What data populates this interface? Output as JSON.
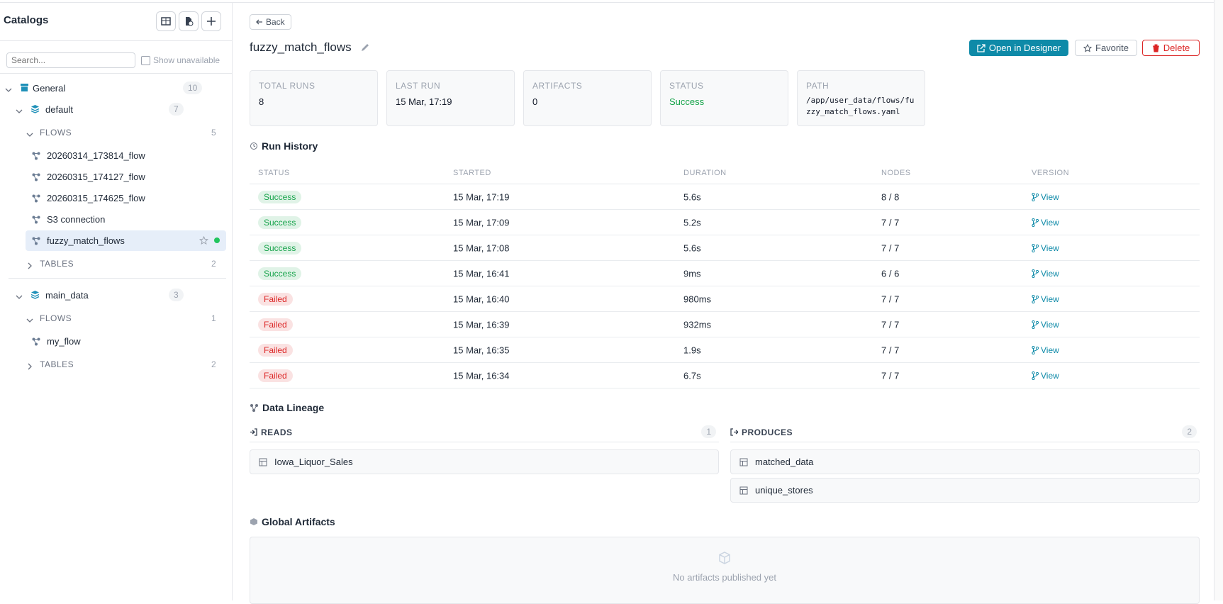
{
  "sidebar": {
    "title": "Catalogs",
    "search_placeholder": "Search...",
    "show_unavailable": "Show unavailable",
    "catalogs": [
      {
        "name": "General",
        "count": 10,
        "schemas": [
          {
            "name": "default",
            "count": 7,
            "sections": [
              {
                "label": "FLOWS",
                "count": 5,
                "items": [
                  "20260314_173814_flow",
                  "20260315_174127_flow",
                  "20260315_174625_flow",
                  "S3 connection",
                  "fuzzy_match_flows"
                ]
              },
              {
                "label": "TABLES",
                "count": 2,
                "items": []
              }
            ]
          },
          {
            "name": "main_data",
            "count": 3,
            "sections": [
              {
                "label": "FLOWS",
                "count": 1,
                "items": [
                  "my_flow"
                ]
              },
              {
                "label": "TABLES",
                "count": 2,
                "items": []
              }
            ]
          }
        ]
      }
    ]
  },
  "main": {
    "back": "Back",
    "title": "fuzzy_match_flows",
    "actions": [
      "Open in Designer",
      "Favorite",
      "Delete"
    ],
    "stats": [
      {
        "label": "TOTAL RUNS",
        "value": 8
      },
      {
        "label": "LAST RUN",
        "value": "15 Mar, 17:19"
      },
      {
        "label": "ARTIFACTS",
        "value": 0
      },
      {
        "label": "STATUS",
        "value": "Success",
        "color": "#16a34a"
      },
      {
        "label": "PATH",
        "value": "/app/user_data/flows/fuzzy_match_flows.yaml"
      }
    ],
    "run_history": {
      "title": "Run History",
      "columns": [
        "STATUS",
        "STARTED",
        "DURATION",
        "NODES",
        "VERSION"
      ],
      "rows": [
        {
          "status": "Success",
          "color": "#16a34a",
          "started": "15 Mar, 17:19",
          "duration": "5.6s",
          "nodes": "8 / 8",
          "version": "View"
        },
        {
          "status": "Success",
          "color": "#16a34a",
          "started": "15 Mar, 17:09",
          "duration": "5.2s",
          "nodes": "7 / 7",
          "version": "View"
        },
        {
          "status": "Success",
          "color": "#16a34a",
          "started": "15 Mar, 17:08",
          "duration": "5.6s",
          "nodes": "7 / 7",
          "version": "View"
        },
        {
          "status": "Success",
          "color": "#16a34a",
          "started": "15 Mar, 16:41",
          "duration": "9ms",
          "nodes": "6 / 6",
          "version": "View"
        },
        {
          "status": "Failed",
          "color": "#dc2626",
          "started": "15 Mar, 16:40",
          "duration": "980ms",
          "nodes": "7 / 7",
          "version": "View"
        },
        {
          "status": "Failed",
          "color": "#dc2626",
          "started": "15 Mar, 16:39",
          "duration": "932ms",
          "nodes": "7 / 7",
          "version": "View"
        },
        {
          "status": "Failed",
          "color": "#dc2626",
          "started": "15 Mar, 16:35",
          "duration": "1.9s",
          "nodes": "7 / 7",
          "version": "View"
        },
        {
          "status": "Failed",
          "color": "#dc2626",
          "started": "15 Mar, 16:34",
          "duration": "6.7s",
          "nodes": "7 / 7",
          "version": "View"
        }
      ]
    },
    "lineage": {
      "title": "Data Lineage",
      "reads": {
        "label": "READS",
        "count": 1,
        "items": [
          "Iowa_Liquor_Sales"
        ]
      },
      "produces": {
        "label": "PRODUCES",
        "count": 2,
        "items": [
          "matched_data",
          "unique_stores"
        ]
      }
    },
    "artifacts": {
      "title": "Global Artifacts",
      "empty": "No artifacts published yet"
    }
  }
}
